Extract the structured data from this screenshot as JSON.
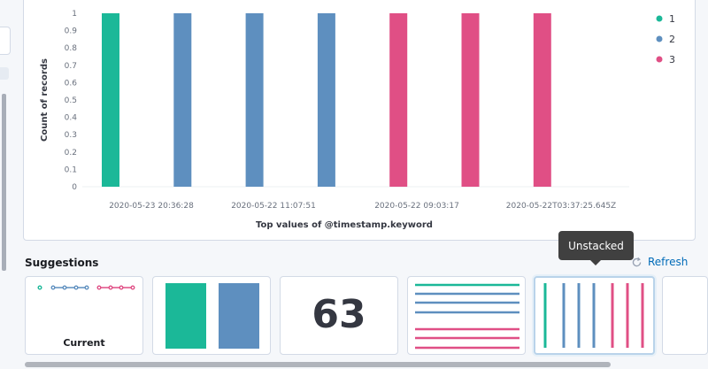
{
  "chart_data": {
    "type": "bar",
    "xlabel": "Top values of @timestamp.keyword",
    "ylabel": "Count of records",
    "ylim": [
      0,
      1
    ],
    "yticks": [
      "0",
      "0.1",
      "0.2",
      "0.3",
      "0.4",
      "0.5",
      "0.6",
      "0.7",
      "0.8",
      "0.9",
      "1"
    ],
    "xticks": [
      "2020-05-23 20:36:28",
      "2020-05-22 11:07:51",
      "2020-05-22 09:03:17",
      "2020-05-22T03:37:25.645Z"
    ],
    "legend_position": "right",
    "series": [
      {
        "name": "1",
        "color": "#1bb898",
        "values": [
          1,
          0,
          0,
          0,
          0,
          0,
          0
        ]
      },
      {
        "name": "2",
        "color": "#5e8fbf",
        "values": [
          0,
          1,
          1,
          1,
          0,
          0,
          0
        ]
      },
      {
        "name": "3",
        "color": "#e04f85",
        "values": [
          0,
          0,
          0,
          0,
          1,
          1,
          1
        ]
      }
    ],
    "bar_series_order": [
      "1",
      "2",
      "2",
      "2",
      "3",
      "3",
      "3"
    ],
    "grid": false
  },
  "suggestions": {
    "title": "Suggestions",
    "refresh_label": "Refresh",
    "tooltip": "Unstacked",
    "cards": [
      {
        "label": "Current"
      },
      {
        "label": ""
      },
      {
        "value": "63"
      },
      {
        "label": ""
      },
      {
        "label": ""
      },
      {
        "label": ""
      }
    ]
  },
  "colors": {
    "green": "#1bb898",
    "blue": "#5e8fbf",
    "pink": "#e04f85",
    "link": "#006bb8"
  }
}
